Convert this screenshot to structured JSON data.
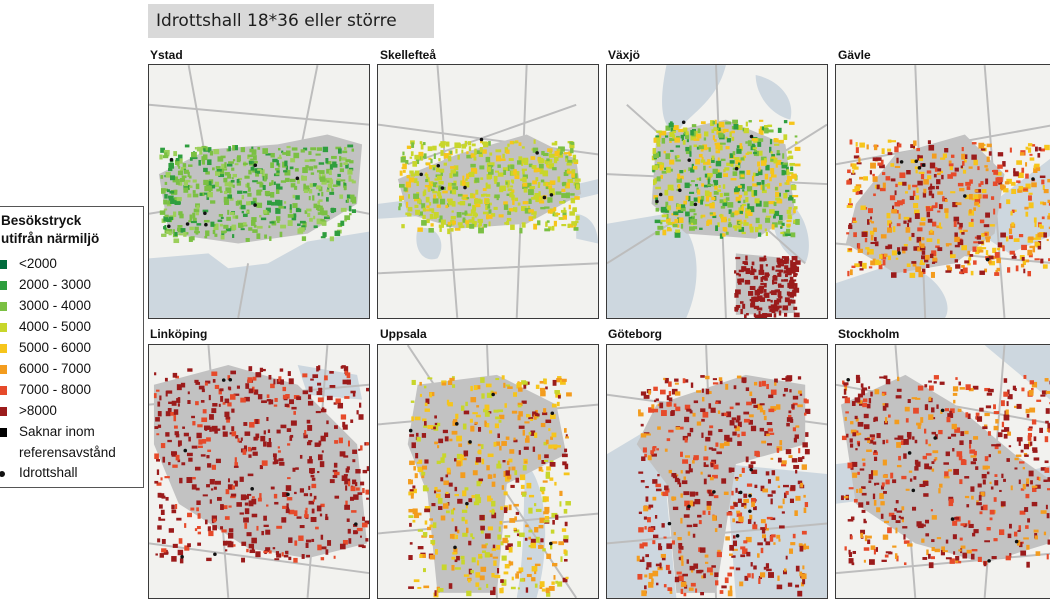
{
  "title": "Idrottshall 18*36 eller större",
  "legend": {
    "title_line1": "Besökstryck",
    "title_line2": "utifrån närmiljö",
    "items": [
      {
        "label": "<2000",
        "color": "#006b3c"
      },
      {
        "label": "2000 - 3000",
        "color": "#2e9e3e"
      },
      {
        "label": "3000 - 4000",
        "color": "#7bc043"
      },
      {
        "label": "4000 - 5000",
        "color": "#c8d62b"
      },
      {
        "label": "5000 - 6000",
        "color": "#f6c51b"
      },
      {
        "label": "6000 - 7000",
        "color": "#f39c1e"
      },
      {
        "label": "7000 - 8000",
        "color": "#e64a2a"
      },
      {
        "label": ">8000",
        "color": "#9b1b1b"
      }
    ],
    "missing_line1": "Saknar inom",
    "missing_line2": "referensavstånd",
    "missing_color": "#000000",
    "hall_label": "Idrottshall"
  },
  "maps": [
    {
      "name": "Ystad",
      "class": "#7bc043",
      "mix": [
        "#7bc043",
        "#7bc043",
        "#2e9e3e",
        "#9ccf5a"
      ]
    },
    {
      "name": "Skellefteå",
      "class": "#c8d62b",
      "mix": [
        "#c8d62b",
        "#c8d62b",
        "#7bc043",
        "#f6c51b"
      ]
    },
    {
      "name": "Växjö",
      "class": "#7bc043",
      "mix": [
        "#7bc043",
        "#c8d62b",
        "#2e9e3e",
        "#f6c51b"
      ]
    },
    {
      "name": "Gävle",
      "class": "#f39c1e",
      "mix": [
        "#f6c51b",
        "#f39c1e",
        "#e64a2a",
        "#9b1b1b"
      ]
    },
    {
      "name": "Linköping",
      "class": "#9b1b1b",
      "mix": [
        "#9b1b1b",
        "#9b1b1b",
        "#9b1b1b",
        "#e64a2a"
      ]
    },
    {
      "name": "Uppsala",
      "class": "#9b1b1b",
      "mix": [
        "#9b1b1b",
        "#f6c51b",
        "#c8d62b",
        "#f39c1e"
      ]
    },
    {
      "name": "Göteborg",
      "class": "#9b1b1b",
      "mix": [
        "#9b1b1b",
        "#9b1b1b",
        "#e64a2a",
        "#f39c1e"
      ]
    },
    {
      "name": "Stockholm",
      "class": "#9b1b1b",
      "mix": [
        "#9b1b1b",
        "#e64a2a",
        "#f39c1e",
        "#9b1b1b"
      ]
    }
  ],
  "colors": {
    "water": "#cdd7df",
    "land": "#f2f2ef",
    "urban": "#c2c2c2",
    "road": "#bdbdbd"
  }
}
